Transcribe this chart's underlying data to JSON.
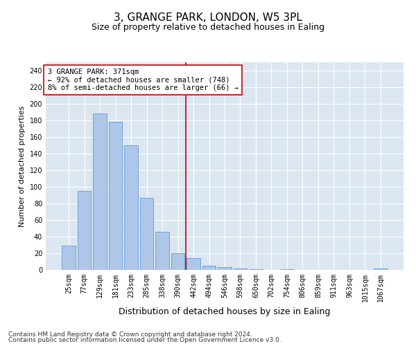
{
  "title": "3, GRANGE PARK, LONDON, W5 3PL",
  "subtitle": "Size of property relative to detached houses in Ealing",
  "xlabel": "Distribution of detached houses by size in Ealing",
  "ylabel": "Number of detached properties",
  "categories": [
    "25sqm",
    "77sqm",
    "129sqm",
    "181sqm",
    "233sqm",
    "285sqm",
    "338sqm",
    "390sqm",
    "442sqm",
    "494sqm",
    "546sqm",
    "598sqm",
    "650sqm",
    "702sqm",
    "754sqm",
    "806sqm",
    "859sqm",
    "911sqm",
    "963sqm",
    "1015sqm",
    "1067sqm"
  ],
  "values": [
    29,
    95,
    188,
    178,
    150,
    87,
    46,
    20,
    14,
    5,
    3,
    2,
    1,
    0,
    1,
    0,
    0,
    0,
    0,
    0,
    2
  ],
  "bar_color": "#aec6e8",
  "bar_edge_color": "#5b9bd5",
  "bar_width": 0.85,
  "vline_x": 7.5,
  "vline_color": "#cc0000",
  "annotation_text": "3 GRANGE PARK: 371sqm\n← 92% of detached houses are smaller (748)\n8% of semi-detached houses are larger (66) →",
  "annotation_box_color": "#ffffff",
  "annotation_box_edge": "#cc0000",
  "ylim": [
    0,
    250
  ],
  "yticks": [
    0,
    20,
    40,
    60,
    80,
    100,
    120,
    140,
    160,
    180,
    200,
    220,
    240
  ],
  "plot_bg_color": "#dce6f1",
  "footer1": "Contains HM Land Registry data © Crown copyright and database right 2024.",
  "footer2": "Contains public sector information licensed under the Open Government Licence v3.0.",
  "title_fontsize": 11,
  "subtitle_fontsize": 9,
  "xlabel_fontsize": 9,
  "ylabel_fontsize": 8,
  "tick_fontsize": 7,
  "footer_fontsize": 6.5,
  "annotation_fontsize": 7.5
}
